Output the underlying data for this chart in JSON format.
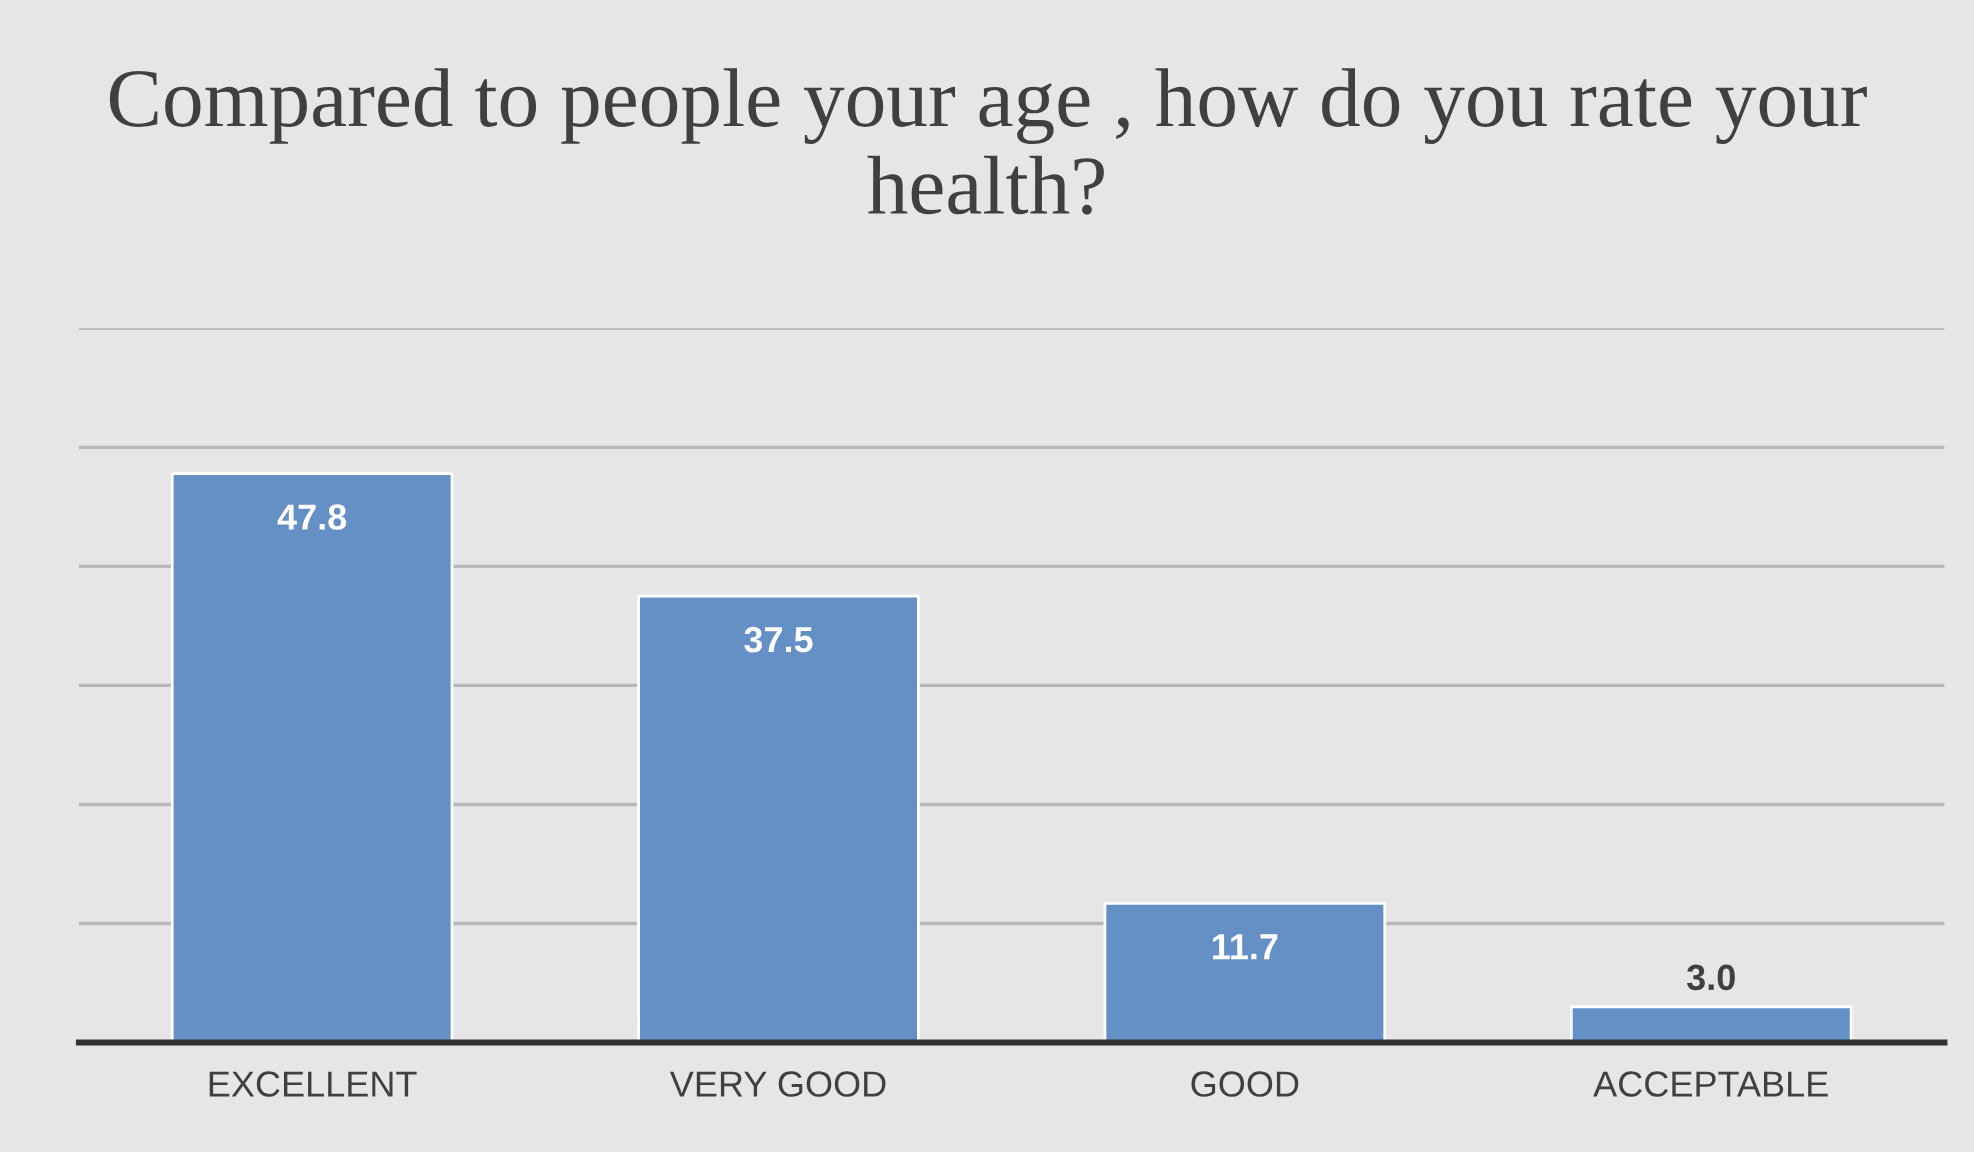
{
  "chart_data": {
    "type": "bar",
    "title": "Compared to people your age , how do you rate your health?",
    "categories": [
      "EXCELLENT",
      "VERY GOOD",
      "GOOD",
      "ACCEPTABLE"
    ],
    "values": [
      47.8,
      37.5,
      11.7,
      3.0
    ],
    "value_labels": [
      "47.8",
      "37.5",
      "11.7",
      "3.0"
    ],
    "color": "#6490c6",
    "ylim": [
      0,
      60
    ],
    "yticks": [
      {
        "value": 0,
        "label": null
      },
      {
        "value": 10,
        "label": null
      },
      {
        "value": 20,
        "label": null
      },
      {
        "value": 30,
        "label": null
      },
      {
        "value": 40,
        "label": null
      },
      {
        "value": 50,
        "label": null
      },
      {
        "value": 60,
        "label": null
      }
    ],
    "grid": "y",
    "tick_labels": "x"
  }
}
